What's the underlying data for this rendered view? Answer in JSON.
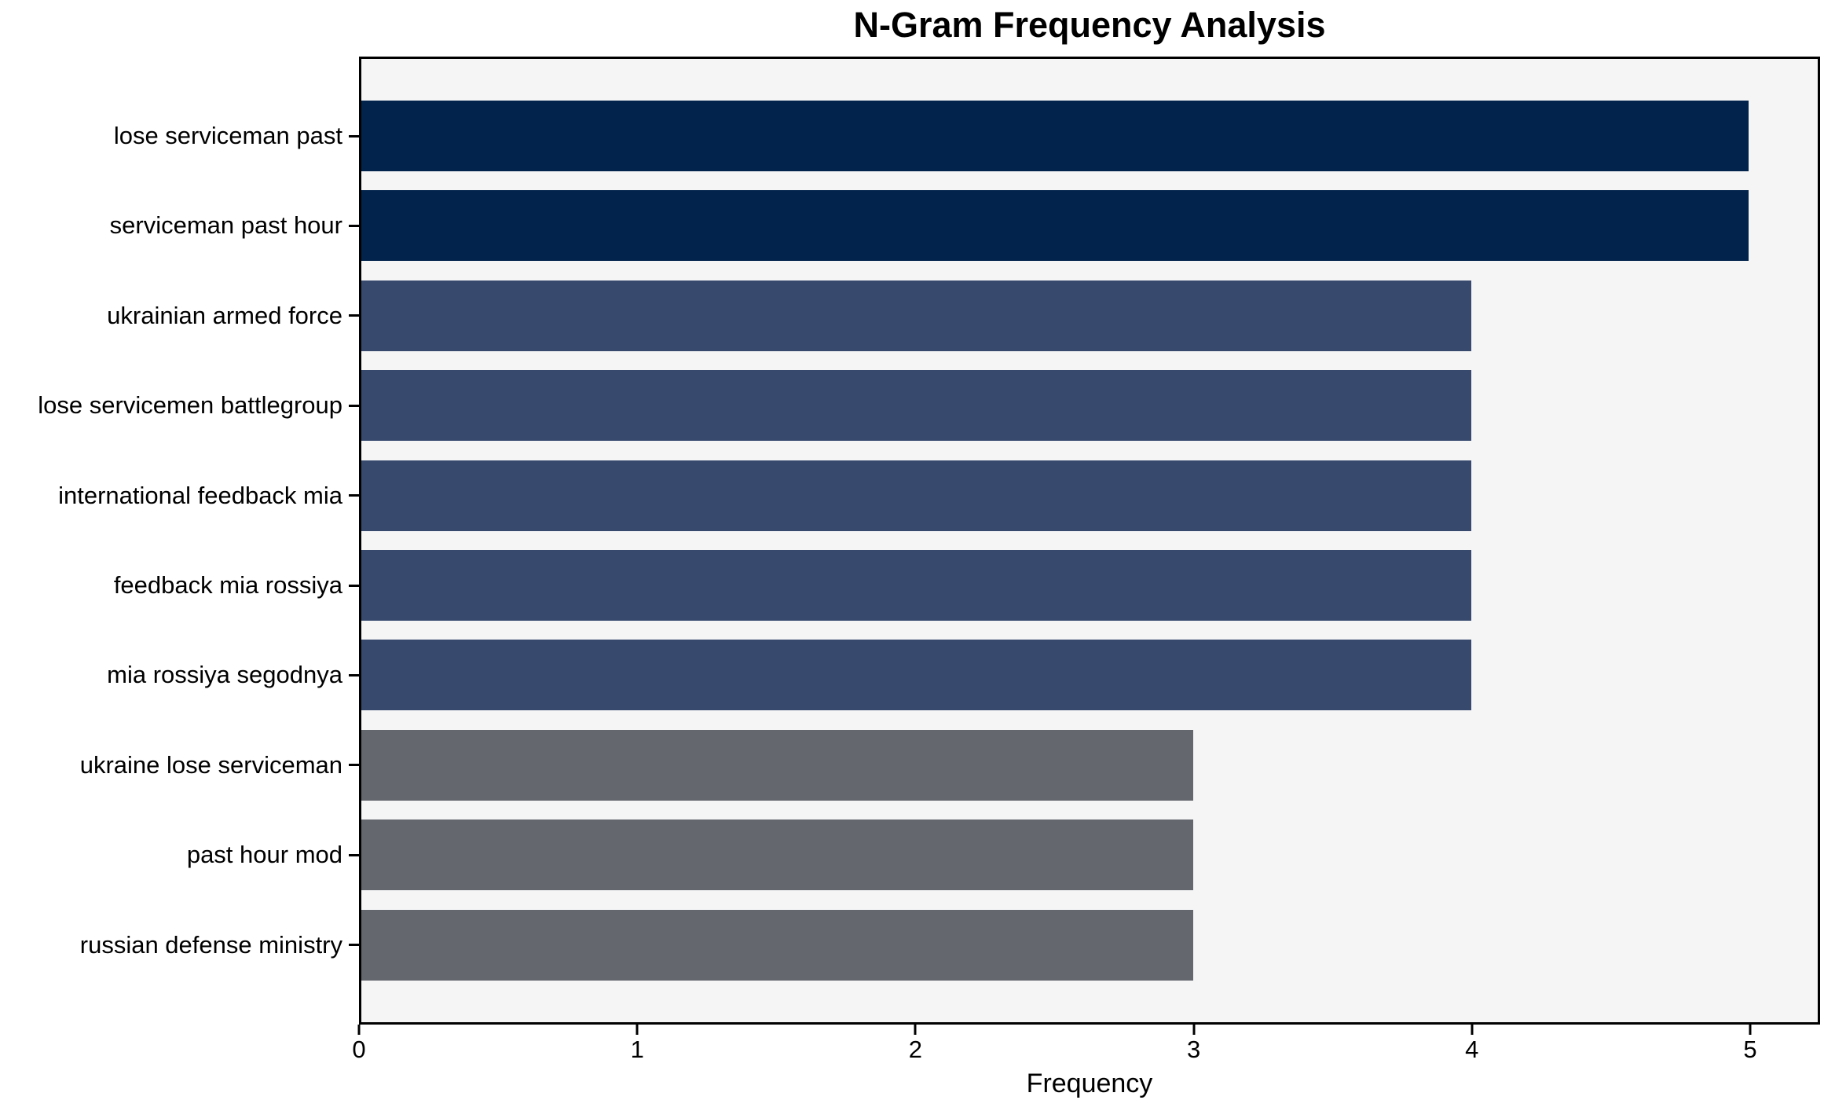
{
  "chart_data": {
    "type": "bar",
    "orientation": "horizontal",
    "title": "N-Gram Frequency Analysis",
    "xlabel": "Frequency",
    "ylabel": "",
    "categories": [
      "lose serviceman past",
      "serviceman past hour",
      "ukrainian armed force",
      "lose servicemen battlegroup",
      "international feedback mia",
      "feedback mia rossiya",
      "mia rossiya segodnya",
      "ukraine lose serviceman",
      "past hour mod",
      "russian defense ministry"
    ],
    "values": [
      5,
      5,
      4,
      4,
      4,
      4,
      4,
      3,
      3,
      3
    ],
    "bar_colors": [
      "#02234c",
      "#02234c",
      "#374a6e",
      "#374a6e",
      "#374a6e",
      "#374a6e",
      "#374a6e",
      "#65676e",
      "#65676e",
      "#65676e"
    ],
    "xlim": [
      0,
      5.25
    ],
    "x_ticks": [
      0,
      1,
      2,
      3,
      4,
      5
    ],
    "grid": false,
    "legend": null,
    "colors": {
      "navy": "#02234c",
      "steel_blue": "#374a6e",
      "gray": "#65676e",
      "plot_background": "#f5f5f6",
      "figure_background": "#ffffff",
      "spine": "#000000",
      "text": "#000000"
    }
  }
}
